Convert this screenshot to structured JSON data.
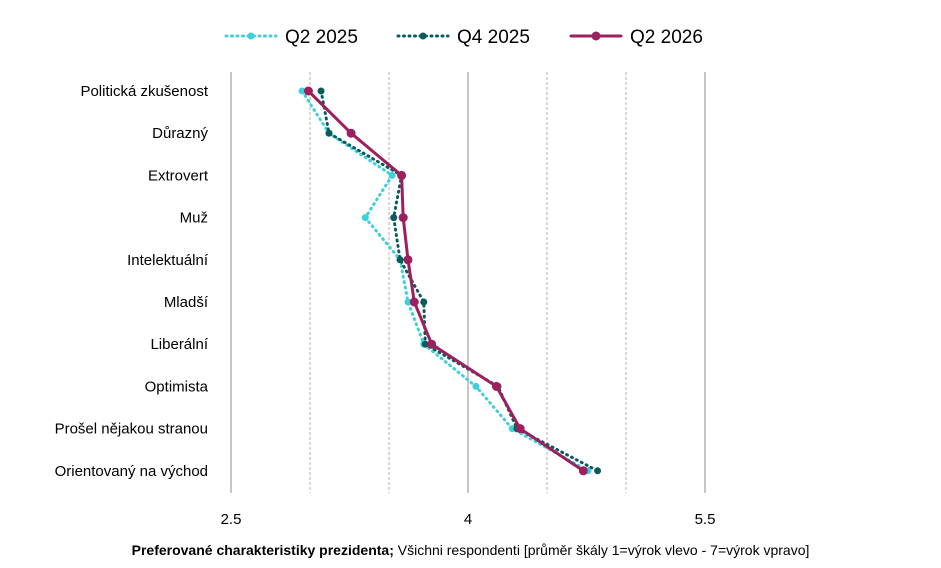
{
  "chart_data": {
    "type": "line",
    "orientation": "horizontal",
    "categories": [
      "Politická zkušenost",
      "Důrazný",
      "Extrovert",
      "Muž",
      "Intelektuální",
      "Mladší",
      "Liberální",
      "Optimista",
      "Prošel nějakou stranou",
      "Orientovaný na východ"
    ],
    "series": [
      {
        "name": "Q2 2025",
        "color": "#3fd0dc",
        "style": "dotted",
        "marker": "circle-small",
        "values": [
          2.95,
          3.12,
          3.52,
          3.35,
          3.57,
          3.62,
          3.72,
          4.05,
          4.28,
          4.76
        ]
      },
      {
        "name": "Q4 2025",
        "color": "#0a5c5c",
        "style": "dotted",
        "marker": "circle-small",
        "values": [
          3.07,
          3.12,
          3.58,
          3.53,
          3.57,
          3.72,
          3.73,
          4.19,
          4.31,
          4.82
        ]
      },
      {
        "name": "Q2 2026",
        "color": "#9c1f5e",
        "style": "solid",
        "marker": "circle",
        "values": [
          2.99,
          3.26,
          3.58,
          3.59,
          3.62,
          3.66,
          3.77,
          4.18,
          4.33,
          4.73
        ]
      }
    ],
    "x_ticks": [
      "2.5",
      "4",
      "5.5"
    ],
    "xlim": [
      2.5,
      5.5
    ],
    "grid": "vertical",
    "legend": "top"
  },
  "caption": {
    "bold": "Preferované charakteristiky prezidenta;",
    "rest": " Všichni respondenti [průměr škály 1=výrok vlevo - 7=výrok vpravo]"
  }
}
